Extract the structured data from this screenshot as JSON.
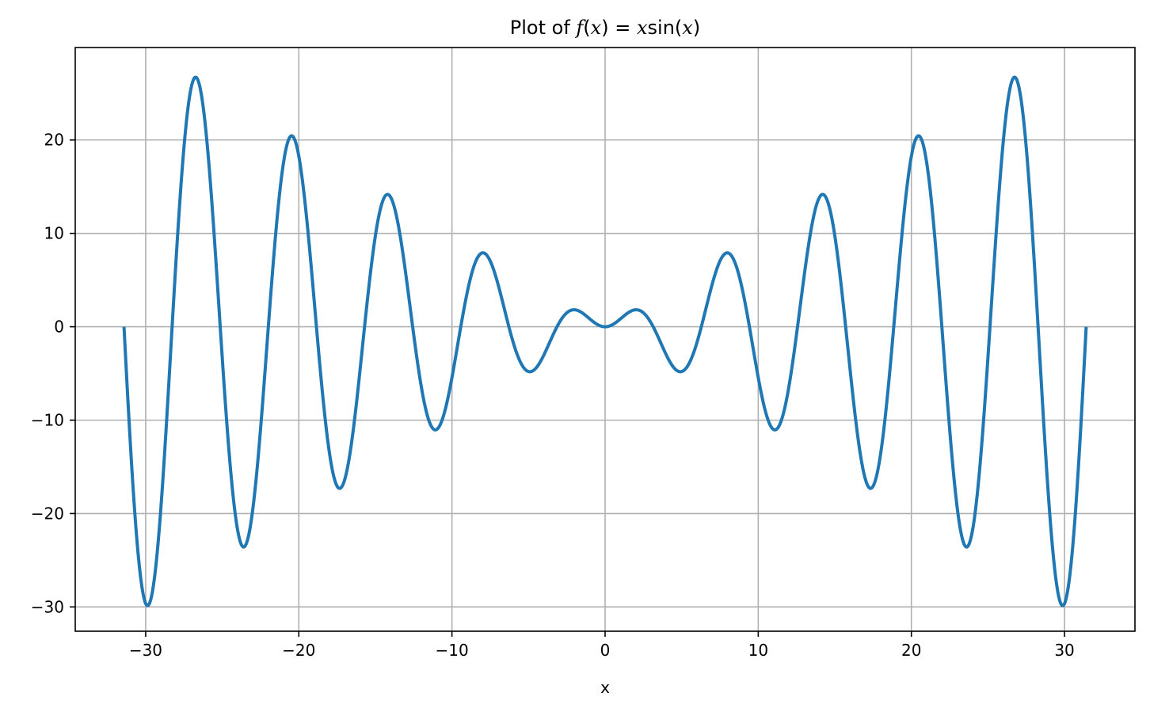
{
  "chart_data": {
    "type": "line",
    "title": {
      "prefix": "Plot of ",
      "f": "f",
      "open1": "(",
      "x1": "x",
      "close1": ")",
      "eq": " = ",
      "x2": "x",
      "sin": "sin",
      "open2": "(",
      "x3": "x",
      "close2": ")"
    },
    "xlabel": "x",
    "ylabel": "",
    "xlim": [
      -34.6,
      34.6
    ],
    "ylim": [
      -32.6,
      29.9
    ],
    "grid": true,
    "x_ticks": [
      -30,
      -20,
      -10,
      0,
      10,
      20,
      30
    ],
    "y_ticks": [
      -30,
      -20,
      -10,
      0,
      10,
      20
    ],
    "x_tick_labels": [
      "−30",
      "−20",
      "−10",
      "0",
      "10",
      "20",
      "30"
    ],
    "y_tick_labels": [
      "−30",
      "−20",
      "−10",
      "0",
      "10",
      "20"
    ],
    "series": [
      {
        "function": "x*sin(x)",
        "x_range": [
          -31.4159,
          31.4159
        ],
        "color": "#1f77b4",
        "key_points": [
          {
            "x": -31.42,
            "y": 0
          },
          {
            "x": -29.88,
            "y": -29.86
          },
          {
            "x": -26.74,
            "y": 26.72
          },
          {
            "x": -23.61,
            "y": -23.59
          },
          {
            "x": -20.47,
            "y": 20.45
          },
          {
            "x": -17.34,
            "y": -17.31
          },
          {
            "x": -14.21,
            "y": 14.18
          },
          {
            "x": -11.09,
            "y": -11.04
          },
          {
            "x": -7.98,
            "y": 7.92
          },
          {
            "x": -4.91,
            "y": -4.81
          },
          {
            "x": -2.03,
            "y": 1.82
          },
          {
            "x": 0,
            "y": 0
          },
          {
            "x": 2.03,
            "y": 1.82
          },
          {
            "x": 4.91,
            "y": -4.81
          },
          {
            "x": 7.98,
            "y": 7.92
          },
          {
            "x": 11.09,
            "y": -11.04
          },
          {
            "x": 14.21,
            "y": 14.18
          },
          {
            "x": 17.34,
            "y": -17.31
          },
          {
            "x": 20.47,
            "y": 20.45
          },
          {
            "x": 23.61,
            "y": -23.59
          },
          {
            "x": 26.74,
            "y": 26.72
          },
          {
            "x": 29.88,
            "y": -29.86
          },
          {
            "x": 31.42,
            "y": 0
          }
        ]
      }
    ]
  },
  "colors": {
    "line": "#1f77b4",
    "grid": "#b0b0b0",
    "frame": "#000000",
    "background": "#ffffff"
  }
}
